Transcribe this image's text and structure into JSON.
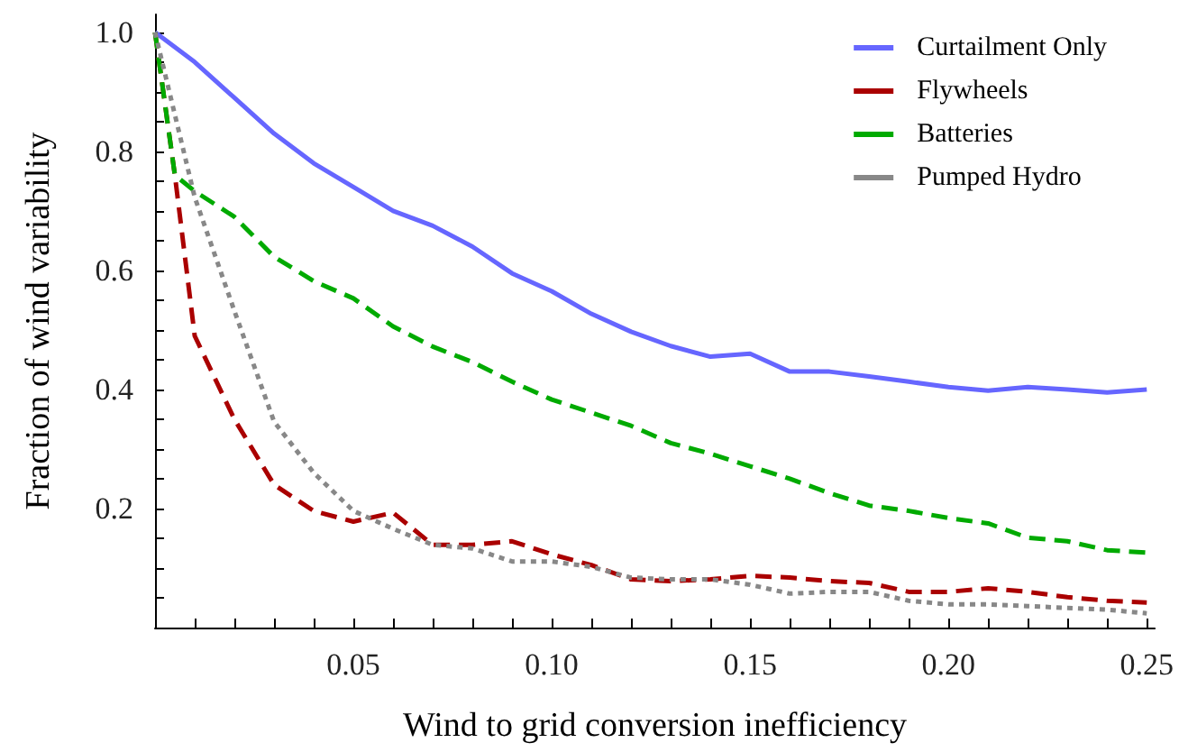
{
  "chart_data": {
    "type": "line",
    "xlabel": "Wind to grid conversion inefficiency",
    "ylabel": "Fraction of wind variability",
    "xlim": [
      0,
      0.252
    ],
    "ylim": [
      0,
      1.03
    ],
    "xticks": [
      {
        "value": 0.01,
        "label": null
      },
      {
        "value": 0.02,
        "label": null
      },
      {
        "value": 0.03,
        "label": null
      },
      {
        "value": 0.04,
        "label": null
      },
      "0.05",
      {
        "value": 0.06,
        "label": null
      },
      {
        "value": 0.07,
        "label": null
      },
      {
        "value": 0.08,
        "label": null
      },
      {
        "value": 0.09,
        "label": null
      },
      {
        "value": 0.1,
        "label": "0.10"
      },
      {
        "value": 0.11,
        "label": null
      },
      {
        "value": 0.12,
        "label": null
      },
      {
        "value": 0.13,
        "label": null
      },
      {
        "value": 0.14,
        "label": null
      },
      0.15,
      {
        "value": 0.16,
        "label": null
      },
      {
        "value": 0.17,
        "label": null
      },
      {
        "value": 0.18,
        "label": null
      },
      {
        "value": 0.19,
        "label": null
      },
      {
        "value": 0.2,
        "label": "0.20"
      },
      {
        "value": 0.21,
        "label": null
      },
      {
        "value": 0.22,
        "label": null
      },
      {
        "value": 0.23,
        "label": null
      },
      {
        "value": 0.24,
        "label": null
      },
      0.25
    ],
    "yticks": [
      {
        "value": 0.05,
        "label": null
      },
      {
        "value": 0.1,
        "label": null
      },
      {
        "value": 0.15,
        "label": null
      },
      0.2,
      {
        "value": 0.25,
        "label": null
      },
      {
        "value": 0.3,
        "label": null
      },
      {
        "value": 0.35,
        "label": null
      },
      0.4,
      {
        "value": 0.45,
        "label": null
      },
      {
        "value": 0.5,
        "label": null
      },
      {
        "value": 0.55,
        "label": null
      },
      0.6,
      {
        "value": 0.65,
        "label": null
      },
      {
        "value": 0.7,
        "label": null
      },
      {
        "value": 0.75,
        "label": null
      },
      0.8,
      {
        "value": 0.85,
        "label": null
      },
      {
        "value": 0.9,
        "label": null
      },
      {
        "value": 0.95,
        "label": null
      },
      {
        "value": 1,
        "label": "1.0"
      }
    ],
    "grid": false,
    "legend": "top right",
    "marker": "none",
    "series": [
      {
        "name": "Curtailment Only",
        "color": "#6666ff",
        "line_style": "solid",
        "x": [
          0,
          0.01,
          0.02,
          0.03,
          0.04,
          0.05,
          0.06,
          0.07,
          0.08,
          0.09,
          0.1,
          0.11,
          0.12,
          0.13,
          0.14,
          0.15,
          0.16,
          0.17,
          0.18,
          0.19,
          0.2,
          0.21,
          0.22,
          0.23,
          0.24,
          0.25
        ],
        "values": [
          1.0,
          0.95,
          0.89,
          0.83,
          0.78,
          0.74,
          0.7,
          0.675,
          0.64,
          0.595,
          0.565,
          0.527,
          0.497,
          0.473,
          0.455,
          0.46,
          0.43,
          0.43,
          0.422,
          0.413,
          0.404,
          0.398,
          0.404,
          0.4,
          0.395,
          0.4
        ]
      },
      {
        "name": "Flywheels",
        "color": "#aa0000",
        "line_style": "dashed",
        "x": [
          0,
          0.005,
          0.01,
          0.02,
          0.03,
          0.04,
          0.05,
          0.06,
          0.07,
          0.08,
          0.09,
          0.1,
          0.11,
          0.12,
          0.13,
          0.14,
          0.15,
          0.16,
          0.17,
          0.18,
          0.19,
          0.2,
          0.21,
          0.22,
          0.23,
          0.24,
          0.25
        ],
        "values": [
          1.0,
          0.76,
          0.49,
          0.35,
          0.24,
          0.196,
          0.178,
          0.193,
          0.139,
          0.139,
          0.145,
          0.123,
          0.105,
          0.081,
          0.078,
          0.081,
          0.087,
          0.084,
          0.078,
          0.075,
          0.06,
          0.06,
          0.066,
          0.06,
          0.051,
          0.045,
          0.042
        ]
      },
      {
        "name": "Batteries",
        "color": "#00aa00",
        "line_style": "dashed",
        "x": [
          0,
          0.005,
          0.01,
          0.02,
          0.03,
          0.04,
          0.05,
          0.06,
          0.07,
          0.08,
          0.09,
          0.1,
          0.11,
          0.12,
          0.13,
          0.14,
          0.15,
          0.16,
          0.17,
          0.18,
          0.19,
          0.2,
          0.21,
          0.22,
          0.23,
          0.24,
          0.25
        ],
        "values": [
          1.0,
          0.76,
          0.733,
          0.69,
          0.623,
          0.582,
          0.553,
          0.506,
          0.472,
          0.446,
          0.413,
          0.383,
          0.361,
          0.339,
          0.31,
          0.292,
          0.271,
          0.25,
          0.226,
          0.205,
          0.196,
          0.184,
          0.175,
          0.151,
          0.145,
          0.13,
          0.126
        ]
      },
      {
        "name": "Pumped Hydro",
        "color": "#888888",
        "line_style": "dotted",
        "x": [
          0,
          0.01,
          0.02,
          0.03,
          0.04,
          0.05,
          0.06,
          0.07,
          0.08,
          0.09,
          0.1,
          0.11,
          0.12,
          0.13,
          0.14,
          0.15,
          0.16,
          0.17,
          0.18,
          0.19,
          0.2,
          0.21,
          0.22,
          0.23,
          0.24,
          0.25
        ],
        "values": [
          1.0,
          0.723,
          0.532,
          0.346,
          0.26,
          0.196,
          0.166,
          0.139,
          0.133,
          0.111,
          0.111,
          0.102,
          0.084,
          0.081,
          0.081,
          0.072,
          0.057,
          0.06,
          0.06,
          0.045,
          0.039,
          0.039,
          0.036,
          0.033,
          0.03,
          0.024
        ]
      }
    ]
  }
}
